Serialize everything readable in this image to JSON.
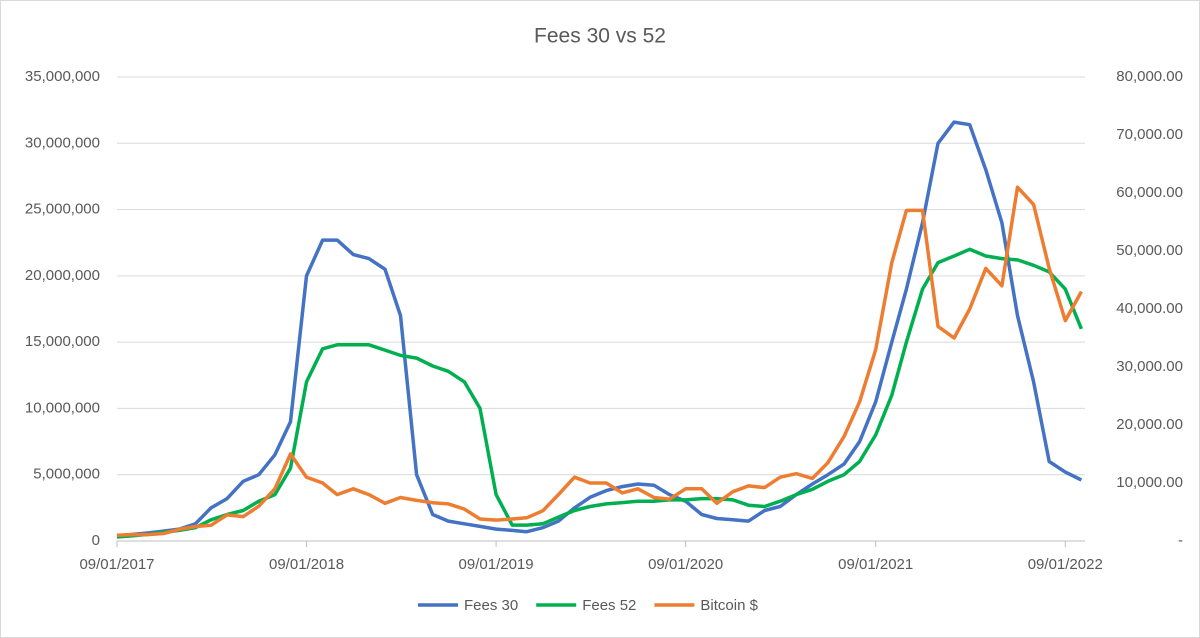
{
  "chart_data": {
    "type": "line",
    "title": "Fees 30 vs 52",
    "x": [
      "2017-01-09",
      "2017-02-09",
      "2017-03-09",
      "2017-04-09",
      "2017-05-09",
      "2017-06-09",
      "2017-07-09",
      "2017-08-09",
      "2017-09-09",
      "2017-10-09",
      "2017-11-09",
      "2017-12-09",
      "2018-01-09",
      "2018-02-09",
      "2018-03-09",
      "2018-04-09",
      "2018-05-09",
      "2018-06-09",
      "2018-07-09",
      "2018-08-09",
      "2018-09-09",
      "2018-10-09",
      "2018-11-09",
      "2018-12-09",
      "2019-01-09",
      "2019-02-09",
      "2019-03-09",
      "2019-04-09",
      "2019-05-09",
      "2019-06-09",
      "2019-07-09",
      "2019-08-09",
      "2019-09-09",
      "2019-10-09",
      "2019-11-09",
      "2019-12-09",
      "2020-01-09",
      "2020-02-09",
      "2020-03-09",
      "2020-04-09",
      "2020-05-09",
      "2020-06-09",
      "2020-07-09",
      "2020-08-09",
      "2020-09-09",
      "2020-10-09",
      "2020-11-09",
      "2020-12-09",
      "2021-01-09",
      "2021-02-09",
      "2021-03-09",
      "2021-04-09",
      "2021-05-09",
      "2021-06-09",
      "2021-07-09",
      "2021-08-09",
      "2021-09-09",
      "2021-10-09",
      "2021-11-09",
      "2021-12-09",
      "2022-01-09",
      "2022-02-09"
    ],
    "series": [
      {
        "name": "Fees 30",
        "color": "#4472c4",
        "values": [
          400000,
          500000,
          600000,
          750000,
          900000,
          1300000,
          2500000,
          3200000,
          4500000,
          5000000,
          6500000,
          9000000,
          20000000,
          22700000,
          22700000,
          21600000,
          21300000,
          20500000,
          17000000,
          5000000,
          2000000,
          1500000,
          1300000,
          1100000,
          900000,
          800000,
          700000,
          1000000,
          1500000,
          2500000,
          3300000,
          3800000,
          4100000,
          4300000,
          4200000,
          3500000,
          3000000,
          2000000,
          1700000,
          1600000,
          1500000,
          2300000,
          2600000,
          3500000,
          4300000,
          5000000,
          5800000,
          7500000,
          10500000,
          15000000,
          19000000,
          24000000,
          30000000,
          31600000,
          31400000,
          28000000,
          24000000,
          17000000,
          12000000,
          6000000,
          5200000,
          4600000
        ]
      },
      {
        "name": "Fees 52",
        "color": "#00b050",
        "values": [
          300000,
          400000,
          500000,
          650000,
          800000,
          1000000,
          1600000,
          2000000,
          2300000,
          3000000,
          3500000,
          5500000,
          12000000,
          14500000,
          14800000,
          14800000,
          14800000,
          14400000,
          14000000,
          13800000,
          13200000,
          12800000,
          12000000,
          10000000,
          3500000,
          1200000,
          1200000,
          1300000,
          1800000,
          2300000,
          2600000,
          2800000,
          2900000,
          3000000,
          3000000,
          3100000,
          3100000,
          3200000,
          3200000,
          3100000,
          2700000,
          2600000,
          3000000,
          3500000,
          3900000,
          4500000,
          5000000,
          6000000,
          8000000,
          11000000,
          15000000,
          19000000,
          21000000,
          21500000,
          22000000,
          21500000,
          21300000,
          21200000,
          20800000,
          20300000,
          19000000,
          16000000
        ]
      },
      {
        "name": "Bitcoin $",
        "color": "#ed7d31",
        "axis": "y2",
        "values": [
          1000,
          1100,
          1100,
          1300,
          2000,
          2500,
          2700,
          4500,
          4200,
          6000,
          9000,
          15000,
          11000,
          10000,
          8000,
          9000,
          8000,
          6500,
          7500,
          7000,
          6600,
          6400,
          5500,
          3800,
          3600,
          3800,
          4000,
          5200,
          8000,
          11000,
          10000,
          10000,
          8300,
          9000,
          7500,
          7200,
          9000,
          9000,
          6500,
          8500,
          9500,
          9200,
          11000,
          11600,
          10800,
          13500,
          18000,
          24000,
          33000,
          48000,
          57000,
          57000,
          37000,
          35000,
          40000,
          47000,
          44000,
          61000,
          58000,
          47000,
          38000,
          43000
        ]
      }
    ],
    "xlim": [
      "2017-01-09",
      "2022-02-16"
    ],
    "xticks": [
      {
        "value": "2017-01-09",
        "label": "09/01/2017"
      },
      {
        "value": "2018-01-09",
        "label": "09/01/2018"
      },
      {
        "value": "2019-01-09",
        "label": "09/01/2019"
      },
      {
        "value": "2020-01-09",
        "label": "09/01/2020"
      },
      {
        "value": "2021-01-09",
        "label": "09/01/2021"
      },
      {
        "value": "2022-01-09",
        "label": "09/01/2022"
      }
    ],
    "ylim": [
      0,
      35000000
    ],
    "yticks": [
      0,
      {
        "value": 5000000,
        "label": "5,000,000"
      },
      {
        "value": 10000000,
        "label": "10,000,000"
      },
      {
        "value": 15000000,
        "label": "15,000,000"
      },
      {
        "value": 20000000,
        "label": "20,000,000"
      },
      {
        "value": 25000000,
        "label": "25,000,000"
      },
      {
        "value": 30000000,
        "label": "30,000,000"
      },
      {
        "value": 35000000,
        "label": "35,000,000"
      }
    ],
    "y2lim": [
      0,
      80000
    ],
    "y2ticks": [
      {
        "value": 0,
        "label": "-"
      },
      {
        "value": 10000,
        "label": "10,000.00"
      },
      {
        "value": 20000,
        "label": "20,000.00"
      },
      {
        "value": 30000,
        "label": "30,000.00"
      },
      {
        "value": 40000,
        "label": "40,000.00"
      },
      {
        "value": 50000,
        "label": "50,000.00"
      },
      {
        "value": 60000,
        "label": "60,000.00"
      },
      {
        "value": 70000,
        "label": "70,000.00"
      },
      {
        "value": 80000,
        "label": "80,000.00"
      }
    ],
    "grid": true,
    "legend": "bottom"
  }
}
